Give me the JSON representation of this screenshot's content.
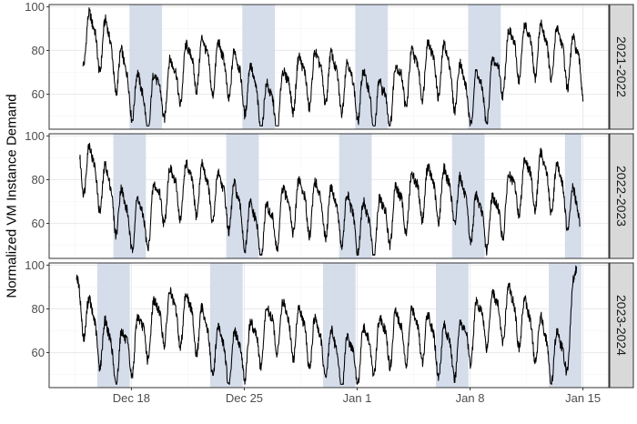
{
  "chart_data": {
    "type": "line",
    "title": "",
    "xlabel": "",
    "ylabel": "Normalized VM Instance Demand",
    "x_tick_labels": [
      "Dec 18",
      "Dec 25",
      "Jan 1",
      "Jan 8",
      "Jan 15"
    ],
    "x_tick_day_offsets": [
      0,
      7,
      14,
      21,
      28
    ],
    "xlim_day_offsets": [
      -5.1,
      29.6
    ],
    "ylim": [
      44,
      101
    ],
    "y_ticks": [
      60,
      80,
      100
    ],
    "grid": true,
    "colors": {
      "line": "#000000",
      "weekend_shade": "#d3dbea",
      "panel_border": "#333333",
      "strip_fill": "#d9d9d9",
      "gridline": "#ebebeb"
    },
    "panels": [
      {
        "label": "2021-2022",
        "series": {
          "start_day_offset": -3.0,
          "end_day_offset": 28.0,
          "trend": [
            [
              -3,
              88
            ],
            [
              -1.5,
              83
            ],
            [
              -0.5,
              68
            ],
            [
              0.8,
              55
            ],
            [
              2.2,
              64
            ],
            [
              4,
              76
            ],
            [
              6,
              72
            ],
            [
              7.5,
              62
            ],
            [
              8.3,
              54
            ],
            [
              9,
              56
            ],
            [
              10,
              66
            ],
            [
              12,
              70
            ],
            [
              14,
              62
            ],
            [
              15.5,
              55
            ],
            [
              17,
              68
            ],
            [
              18.5,
              74
            ],
            [
              19.5,
              72
            ],
            [
              20.8,
              60
            ],
            [
              22,
              60
            ],
            [
              23.5,
              80
            ],
            [
              25,
              82
            ],
            [
              26.5,
              80
            ],
            [
              28,
              72
            ]
          ],
          "amplitude": 11
        },
        "shaded_ranges": [
          [
            -0.12,
            1.9
          ],
          [
            6.88,
            8.9
          ],
          [
            13.88,
            15.9
          ],
          [
            20.88,
            22.9
          ]
        ]
      },
      {
        "label": "2022-2023",
        "series": {
          "start_day_offset": -3.2,
          "end_day_offset": 27.8,
          "trend": [
            [
              -3.2,
              90
            ],
            [
              -2.2,
              82
            ],
            [
              -1.2,
              72
            ],
            [
              -0.4,
              63
            ],
            [
              0.8,
              60
            ],
            [
              2,
              74
            ],
            [
              4,
              78
            ],
            [
              6,
              71
            ],
            [
              7.5,
              58
            ],
            [
              8.5,
              58
            ],
            [
              10,
              70
            ],
            [
              12,
              68
            ],
            [
              13.5,
              62
            ],
            [
              14.8,
              58
            ],
            [
              16,
              64
            ],
            [
              18,
              76
            ],
            [
              20,
              74
            ],
            [
              21.5,
              62
            ],
            [
              22.5,
              62
            ],
            [
              24,
              78
            ],
            [
              25.5,
              82
            ],
            [
              26.8,
              74
            ],
            [
              27.8,
              60
            ]
          ],
          "amplitude": 11
        },
        "shaded_ranges": [
          [
            -1.12,
            0.9
          ],
          [
            5.88,
            7.9
          ],
          [
            12.88,
            14.9
          ],
          [
            19.88,
            21.9
          ],
          [
            26.88,
            27.9
          ]
        ]
      },
      {
        "label": "2023-2024",
        "series": {
          "start_day_offset": -3.4,
          "end_day_offset": 27.6,
          "trend": [
            [
              -3.4,
              90
            ],
            [
              -2.6,
              74
            ],
            [
              -1.6,
              64
            ],
            [
              -0.8,
              58
            ],
            [
              0.4,
              66
            ],
            [
              2,
              78
            ],
            [
              3.8,
              76
            ],
            [
              5.2,
              62
            ],
            [
              6.2,
              58
            ],
            [
              7.5,
              64
            ],
            [
              9,
              74
            ],
            [
              10.5,
              70
            ],
            [
              12,
              62
            ],
            [
              13.2,
              56
            ],
            [
              14.2,
              60
            ],
            [
              16,
              68
            ],
            [
              18,
              70
            ],
            [
              19.2,
              62
            ],
            [
              20.2,
              62
            ],
            [
              21.8,
              76
            ],
            [
              23.5,
              80
            ],
            [
              25,
              70
            ],
            [
              26,
              60
            ],
            [
              26.8,
              58
            ],
            [
              27.2,
              72
            ],
            [
              27.6,
              94
            ]
          ],
          "amplitude": 11
        },
        "shaded_ranges": [
          [
            -2.12,
            -0.1
          ],
          [
            4.88,
            6.9
          ],
          [
            11.88,
            13.9
          ],
          [
            18.88,
            20.9
          ],
          [
            25.88,
            27.9
          ]
        ]
      }
    ]
  }
}
